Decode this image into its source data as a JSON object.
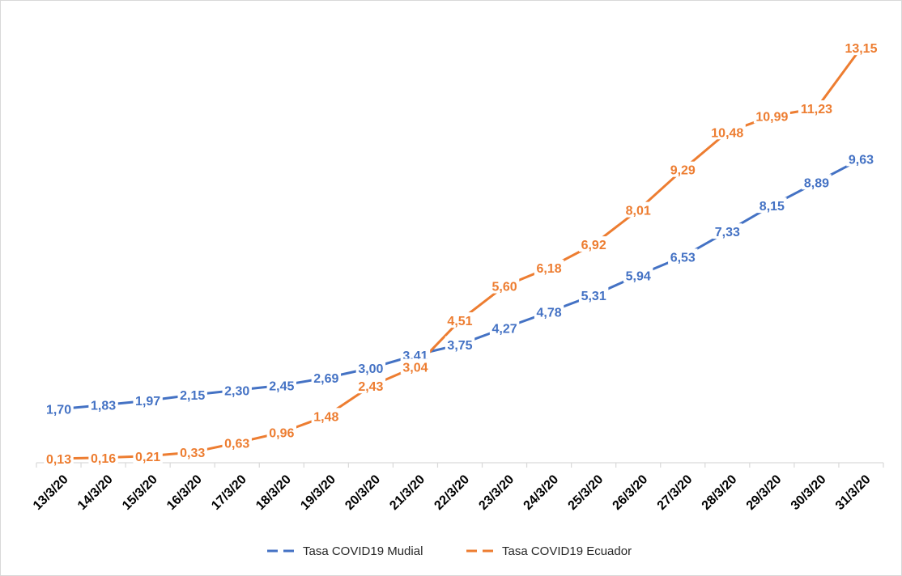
{
  "chart_data": {
    "type": "line",
    "title": "",
    "xlabel": "",
    "ylabel": "",
    "ylim": [
      0,
      14
    ],
    "grid": false,
    "legend_position": "bottom",
    "categories": [
      "13/3/20",
      "14/3/20",
      "15/3/20",
      "16/3/20",
      "17/3/20",
      "18/3/20",
      "19/3/20",
      "20/3/20",
      "21/3/20",
      "22/3/20",
      "23/3/20",
      "24/3/20",
      "25/3/20",
      "26/3/20",
      "27/3/20",
      "28/3/20",
      "29/3/20",
      "30/3/20",
      "31/3/20"
    ],
    "series": [
      {
        "name": "Tasa COVID19 Mudial",
        "color": "#4472C4",
        "values": [
          1.7,
          1.83,
          1.97,
          2.15,
          2.3,
          2.45,
          2.69,
          3.0,
          3.41,
          3.75,
          4.27,
          4.78,
          5.31,
          5.94,
          6.53,
          7.33,
          8.15,
          8.89,
          9.63
        ],
        "labels": [
          "1,70",
          "1,83",
          "1,97",
          "2,15",
          "2,30",
          "2,45",
          "2,69",
          "3,00",
          "3,41",
          "3,75",
          "4,27",
          "4,78",
          "5,31",
          "5,94",
          "6,53",
          "7,33",
          "8,15",
          "8,89",
          "9,63"
        ]
      },
      {
        "name": "Tasa COVID19 Ecuador",
        "color": "#ED7D31",
        "values": [
          0.13,
          0.16,
          0.21,
          0.33,
          0.63,
          0.96,
          1.48,
          2.43,
          3.04,
          4.51,
          5.6,
          6.18,
          6.92,
          8.01,
          9.29,
          10.48,
          10.99,
          11.23,
          13.15
        ],
        "labels": [
          "0,13",
          "0,16",
          "0,21",
          "0,33",
          "0,63",
          "0,96",
          "1,48",
          "2,43",
          "3,04",
          "4,51",
          "5,60",
          "6,18",
          "6,92",
          "8,01",
          "9,29",
          "10,48",
          "10,99",
          "11,23",
          "13,15"
        ]
      }
    ]
  }
}
